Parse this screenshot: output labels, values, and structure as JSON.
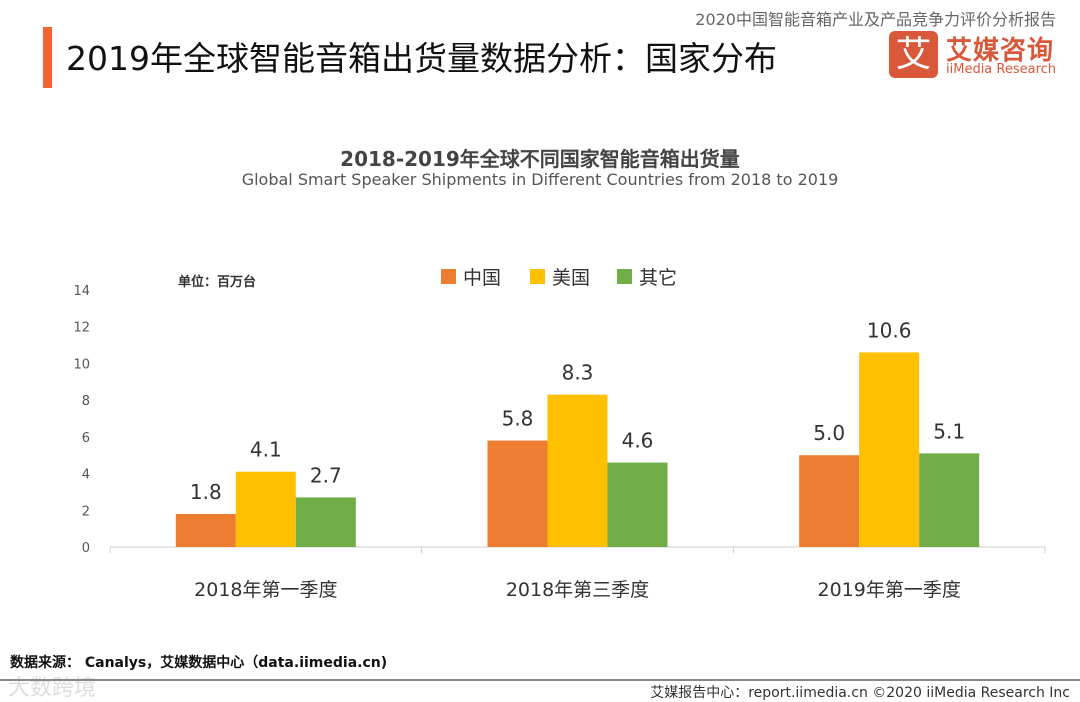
{
  "header": {
    "title": "2019年全球智能音箱出货量数据分析：国家分布",
    "report_name": "2020中国智能音箱产业及产品竞争力评价分析报告",
    "logo": {
      "mark": "艾",
      "name_cn": "艾媒咨询",
      "name_en": "iiMedia Research"
    }
  },
  "chart_data": {
    "type": "bar",
    "title": "2018-2019年全球不同国家智能音箱出货量",
    "subtitle": "Global Smart Speaker Shipments in Different Countries from 2018 to 2019",
    "unit": "单位：百万台",
    "categories": [
      "2018年第一季度",
      "2018年第三季度",
      "2019年第一季度"
    ],
    "series": [
      {
        "name": "中国",
        "color": "#ED7D31",
        "values": [
          1.8,
          5.8,
          5.0
        ]
      },
      {
        "name": "美国",
        "color": "#FFC000",
        "values": [
          4.1,
          8.3,
          10.6
        ]
      },
      {
        "name": "其它",
        "color": "#70AD47",
        "values": [
          2.7,
          4.6,
          5.1
        ]
      }
    ],
    "ylim": [
      0,
      14
    ],
    "yticks": [
      0,
      2,
      4,
      6,
      8,
      10,
      12,
      14
    ],
    "legend_position": "top-center",
    "grid": false
  },
  "footer": {
    "source": "数据来源： Canalys，艾媒数据中心（data.iimedia.cn)",
    "report_center": "艾媒报告中心：report.iimedia.cn   ©2020  iiMedia Research  Inc",
    "watermark": "大数跨境"
  }
}
